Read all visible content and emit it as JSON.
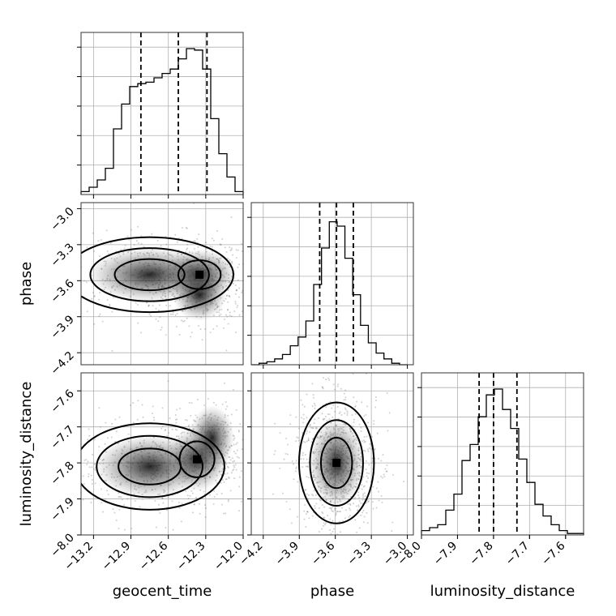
{
  "chart_data": {
    "type": "corner",
    "parameters": [
      "geocent_time",
      "phase",
      "luminosity_distance"
    ],
    "ranges": {
      "geocent_time": [
        -13.3,
        -12.0
      ],
      "phase": [
        -4.3,
        -2.95
      ],
      "luminosity_distance": [
        -8.0,
        -7.55
      ]
    },
    "ticks": {
      "geocent_time": [
        -13.2,
        -12.9,
        -12.6,
        -12.3,
        -12.0
      ],
      "phase": [
        -4.2,
        -3.9,
        -3.6,
        -3.3,
        -3.0
      ],
      "luminosity_distance": [
        -8.0,
        -7.9,
        -7.8,
        -7.7,
        -7.6
      ]
    },
    "tick_labels": {
      "geocent_time": [
        "−13.2",
        "−12.9",
        "−12.6",
        "−12.3",
        "−12.0"
      ],
      "phase": [
        "−4.2",
        "−3.9",
        "−3.6",
        "−3.3",
        "−3.0"
      ],
      "luminosity_distance": [
        "−8.0",
        "−7.9",
        "−7.8",
        "−7.7",
        "−7.6"
      ]
    },
    "quantiles": {
      "geocent_time": [
        -12.82,
        -12.52,
        -12.29
      ],
      "phase": [
        -3.73,
        -3.59,
        -3.45
      ],
      "luminosity_distance": [
        -7.84,
        -7.8,
        -7.735
      ]
    },
    "histograms": {
      "geocent_time": {
        "edges": [
          -13.3,
          -13.235,
          -13.17,
          -13.105,
          -13.04,
          -12.975,
          -12.91,
          -12.845,
          -12.78,
          -12.715,
          -12.65,
          -12.585,
          -12.52,
          -12.455,
          -12.39,
          -12.325,
          -12.26,
          -12.195,
          -12.13,
          -12.065,
          -12.0
        ],
        "counts": [
          0.02,
          0.05,
          0.1,
          0.18,
          0.45,
          0.62,
          0.74,
          0.76,
          0.77,
          0.8,
          0.83,
          0.86,
          0.93,
          1.0,
          0.99,
          0.86,
          0.52,
          0.28,
          0.12,
          0.02
        ]
      },
      "phase": {
        "edges": [
          -4.3,
          -4.235,
          -4.17,
          -4.105,
          -4.04,
          -3.975,
          -3.91,
          -3.845,
          -3.78,
          -3.715,
          -3.65,
          -3.585,
          -3.52,
          -3.455,
          -3.39,
          -3.325,
          -3.26,
          -3.195,
          -3.13,
          -3.065,
          -3.0
        ],
        "counts": [
          0.0,
          0.01,
          0.02,
          0.04,
          0.07,
          0.13,
          0.19,
          0.3,
          0.55,
          0.8,
          0.98,
          0.95,
          0.73,
          0.48,
          0.27,
          0.15,
          0.08,
          0.04,
          0.01,
          0.0
        ]
      },
      "luminosity_distance": {
        "edges": [
          -8.0,
          -7.9775,
          -7.955,
          -7.9325,
          -7.91,
          -7.8875,
          -7.865,
          -7.8425,
          -7.82,
          -7.7975,
          -7.775,
          -7.7525,
          -7.73,
          -7.7075,
          -7.685,
          -7.6625,
          -7.64,
          -7.6175,
          -7.595,
          -7.5725,
          -7.55
        ],
        "counts": [
          0.03,
          0.05,
          0.07,
          0.17,
          0.28,
          0.51,
          0.62,
          0.81,
          0.96,
          1.0,
          0.86,
          0.73,
          0.52,
          0.36,
          0.21,
          0.13,
          0.07,
          0.03,
          0.01,
          0.01
        ]
      }
    },
    "grid": true
  }
}
